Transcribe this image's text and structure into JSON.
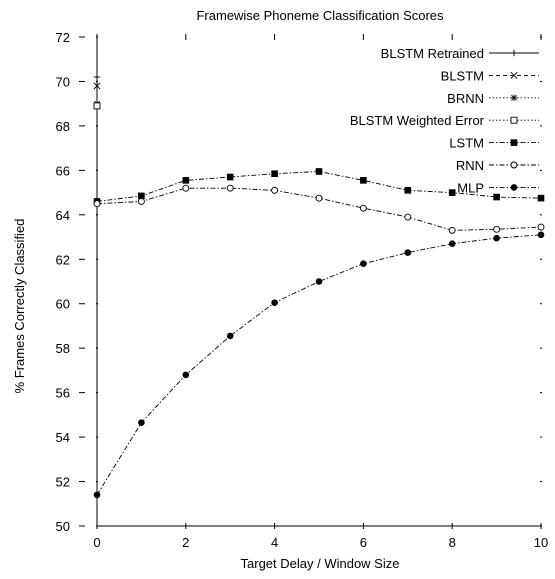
{
  "chart_data": {
    "type": "line",
    "title": "Framewise Phoneme Classification Scores",
    "xlabel": "Target Delay / Window Size",
    "ylabel": "% Frames Correctly Classified",
    "xlim": [
      0,
      10
    ],
    "ylim": [
      50,
      72
    ],
    "xticks": [
      0,
      2,
      4,
      6,
      8,
      10
    ],
    "yticks": [
      50,
      52,
      54,
      56,
      58,
      60,
      62,
      64,
      66,
      68,
      70,
      72
    ],
    "grid": false,
    "legend_position": "top-right",
    "series": [
      {
        "name": "BLSTM Retrained",
        "marker": "plus",
        "dash": "solid",
        "x": [
          0
        ],
        "values": [
          70.2
        ]
      },
      {
        "name": "BLSTM",
        "marker": "cross",
        "dash": "dashed",
        "x": [
          0
        ],
        "values": [
          69.8
        ]
      },
      {
        "name": "BRNN",
        "marker": "star",
        "dash": "dotted",
        "x": [
          0
        ],
        "values": [
          69.0
        ]
      },
      {
        "name": "BLSTM Weighted Error",
        "marker": "open-square",
        "dash": "dotted",
        "x": [
          0
        ],
        "values": [
          68.9
        ]
      },
      {
        "name": "LSTM",
        "marker": "filled-square",
        "dash": "dashdot",
        "x": [
          0,
          1,
          2,
          3,
          4,
          5,
          6,
          7,
          8,
          9,
          10
        ],
        "values": [
          64.6,
          64.85,
          65.55,
          65.7,
          65.85,
          65.95,
          65.55,
          65.1,
          65.0,
          64.8,
          64.75
        ]
      },
      {
        "name": "RNN",
        "marker": "open-circle",
        "dash": "dashdot",
        "x": [
          0,
          1,
          2,
          3,
          4,
          5,
          6,
          7,
          8,
          9,
          10
        ],
        "values": [
          64.5,
          64.6,
          65.2,
          65.2,
          65.1,
          64.75,
          64.3,
          63.9,
          63.3,
          63.35,
          63.45
        ]
      },
      {
        "name": "MLP",
        "marker": "filled-circle",
        "dash": "dashdot",
        "x": [
          0,
          1,
          2,
          3,
          4,
          5,
          6,
          7,
          8,
          9,
          10
        ],
        "values": [
          51.4,
          54.65,
          56.8,
          58.55,
          60.05,
          61.0,
          61.8,
          62.3,
          62.7,
          62.95,
          63.1
        ]
      }
    ]
  }
}
